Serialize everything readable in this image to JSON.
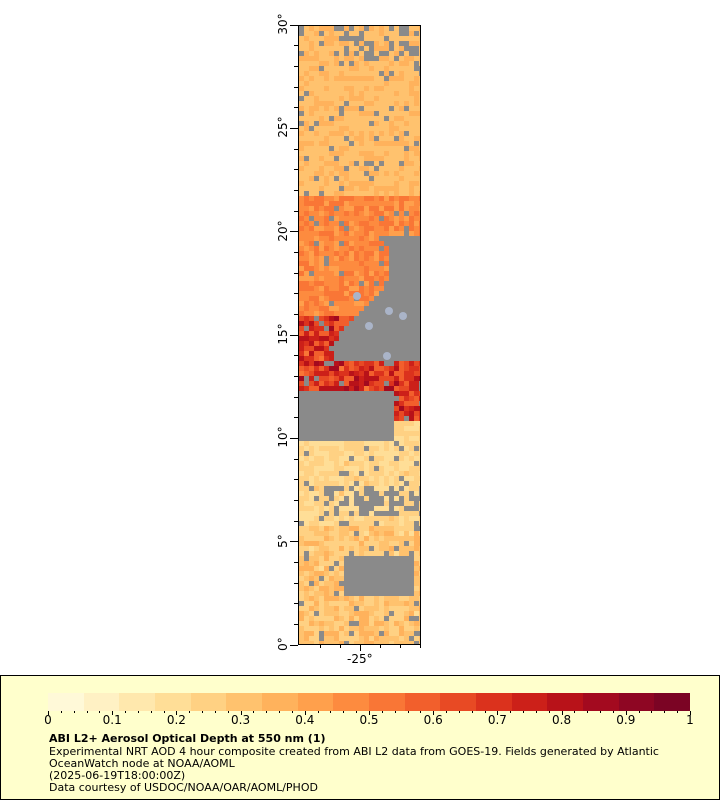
{
  "map": {
    "y_labels": [
      "0°",
      "5°",
      "10°",
      "15°",
      "20°",
      "25°",
      "30°"
    ],
    "x_labels": [
      "-25°"
    ],
    "colors": {
      "land_or_missing": "#8a8a8a",
      "water_light": "#aab4c8"
    }
  },
  "legend": {
    "title": "ABI L2+ Aerosol Optical Depth at 550 nm (1)",
    "line1": "Experimental NRT AOD 4 hour composite created from ABI L2 data from GOES-19. Fields generated by Atlantic",
    "line2": "OceanWatch node at NOAA/AOML",
    "line3": "(2025-06-19T18:00:00Z)",
    "line4": "Data courtesy of USDOC/NOAA/OAR/AOML/PHOD",
    "scale_labels": [
      "0",
      "0.1",
      "0.2",
      "0.3",
      "0.4",
      "0.5",
      "0.6",
      "0.7",
      "0.8",
      "0.9",
      "1"
    ],
    "colorbar_colors": [
      "#fff9d8",
      "#fff1c4",
      "#ffe8ad",
      "#ffde97",
      "#ffd183",
      "#ffc26e",
      "#ffb25c",
      "#ffa04c",
      "#fd8b3f",
      "#f97636",
      "#f25f2c",
      "#e84a24",
      "#db321d",
      "#cc2019",
      "#b81219",
      "#a30a1f",
      "#8e0623",
      "#7b0424"
    ],
    "colors": {
      "background": "#ffffcc"
    }
  }
}
